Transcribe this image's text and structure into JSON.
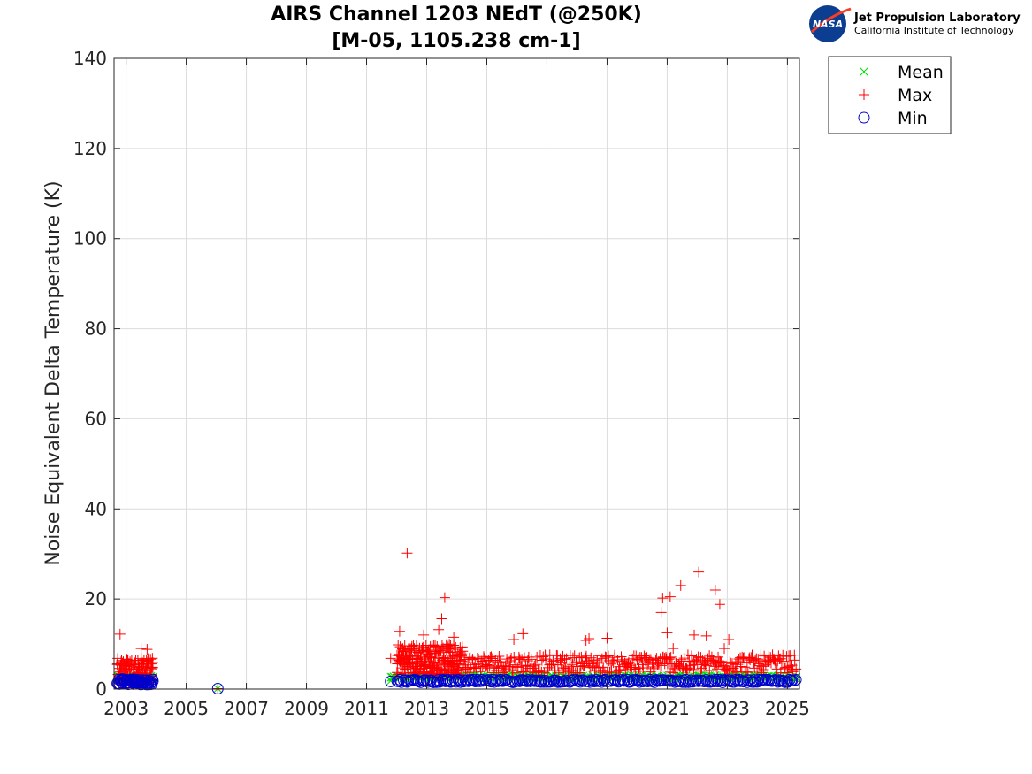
{
  "chart_data": {
    "type": "scatter",
    "title_line1": "AIRS Channel 1203 NEdT (@250K)",
    "title_line2": "[M-05, 1105.238 cm-1]",
    "xlabel": "",
    "ylabel": "Noise Equivalent Delta Temperature (K)",
    "xlim": [
      2002.6,
      2025.4
    ],
    "ylim": [
      0,
      140
    ],
    "x_ticks": [
      2003,
      2005,
      2007,
      2009,
      2011,
      2013,
      2015,
      2017,
      2019,
      2021,
      2023,
      2025
    ],
    "y_ticks": [
      0,
      20,
      40,
      60,
      80,
      100,
      120,
      140
    ],
    "grid": true,
    "legend_position": "outside top-right",
    "colors": {
      "mean": "#00dd00",
      "max": "#ff0000",
      "min": "#0000cc"
    },
    "series": [
      {
        "name": "Mean",
        "marker": "x",
        "segments": [
          {
            "x_range": [
              2002.7,
              2003.9
            ],
            "y_base": 2.5,
            "y_jitter": 0.4,
            "count": 70
          },
          {
            "x_range": [
              2011.8,
              2025.3
            ],
            "y_base": 2.7,
            "y_jitter": 0.3,
            "count": 260
          }
        ],
        "points": [
          [
            2006.05,
            0.1
          ],
          [
            2011.8,
            1.8
          ]
        ]
      },
      {
        "name": "Max",
        "marker": "+",
        "segments": [
          {
            "x_range": [
              2002.7,
              2003.9
            ],
            "y_base": 4.0,
            "y_jitter": 3.0,
            "count": 140
          },
          {
            "x_range": [
              2012.0,
              2014.2
            ],
            "y_base": 6.5,
            "y_jitter": 3.5,
            "count": 230
          },
          {
            "x_range": [
              2014.2,
              2025.3
            ],
            "y_base": 5.6,
            "y_jitter": 2.0,
            "count": 380
          }
        ],
        "points": [
          [
            2002.8,
            12.2
          ],
          [
            2003.5,
            9.0
          ],
          [
            2003.7,
            8.8
          ],
          [
            2006.05,
            0.1
          ],
          [
            2011.8,
            6.8
          ],
          [
            2012.1,
            12.8
          ],
          [
            2012.35,
            30.2
          ],
          [
            2012.9,
            12.0
          ],
          [
            2013.4,
            13.2
          ],
          [
            2013.5,
            15.6
          ],
          [
            2013.6,
            20.3
          ],
          [
            2013.9,
            11.5
          ],
          [
            2015.9,
            11.0
          ],
          [
            2016.2,
            12.3
          ],
          [
            2018.3,
            10.8
          ],
          [
            2018.4,
            11.2
          ],
          [
            2019.0,
            11.3
          ],
          [
            2020.8,
            17.0
          ],
          [
            2020.85,
            20.2
          ],
          [
            2021.0,
            12.5
          ],
          [
            2021.1,
            20.5
          ],
          [
            2021.45,
            23.0
          ],
          [
            2021.9,
            12.0
          ],
          [
            2022.05,
            26.0
          ],
          [
            2022.3,
            11.8
          ],
          [
            2022.6,
            22.0
          ],
          [
            2022.75,
            18.8
          ],
          [
            2023.05,
            11.0
          ],
          [
            2021.2,
            9.0
          ],
          [
            2022.9,
            9.0
          ]
        ]
      },
      {
        "name": "Min",
        "marker": "o",
        "segments": [
          {
            "x_range": [
              2002.7,
              2003.9
            ],
            "y_base": 1.6,
            "y_jitter": 0.6,
            "count": 60
          },
          {
            "x_range": [
              2012.0,
              2025.3
            ],
            "y_base": 1.8,
            "y_jitter": 0.3,
            "count": 260
          }
        ],
        "points": [
          [
            2006.05,
            0.1
          ],
          [
            2011.8,
            1.7
          ]
        ]
      }
    ]
  },
  "logo": {
    "nasa_text": "NASA",
    "org_name": "Jet Propulsion Laboratory",
    "org_sub": "California Institute of Technology"
  }
}
